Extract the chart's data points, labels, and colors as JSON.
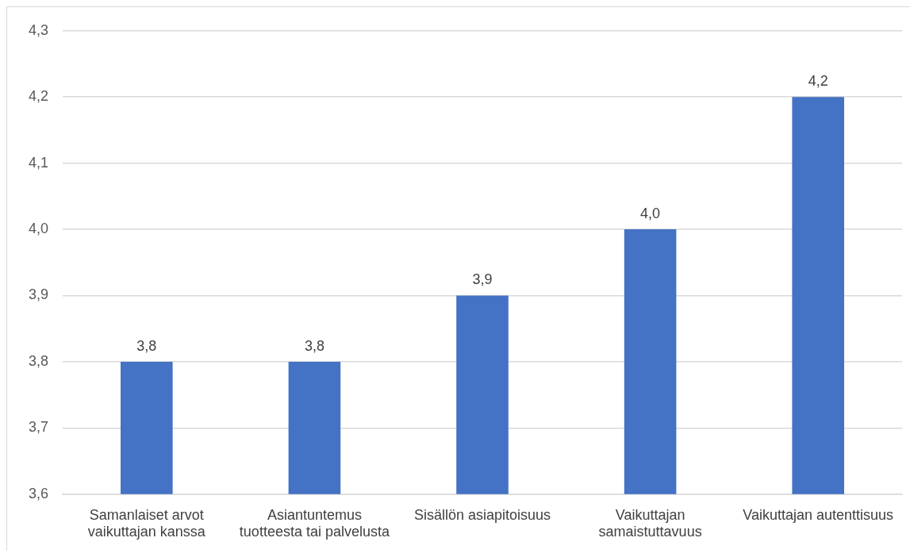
{
  "chart_data": {
    "type": "bar",
    "categories": [
      "Samanlaiset arvot vaikuttajan kanssa",
      "Asiantuntemus tuotteesta tai palvelusta",
      "Sisällön asiapitoisuus",
      "Vaikuttajan samaistuttavuus",
      "Vaikuttajan autenttisuus"
    ],
    "values": [
      3.8,
      3.8,
      3.9,
      4.0,
      4.2
    ],
    "value_labels": [
      "3,8",
      "3,8",
      "3,9",
      "4,0",
      "4,2"
    ],
    "color": "#4472c4",
    "ylim": [
      3.6,
      4.3
    ],
    "yticks": [
      {
        "value": 3.6,
        "label": "3,6"
      },
      {
        "value": 3.7,
        "label": "3,7"
      },
      {
        "value": 3.8,
        "label": "3,8"
      },
      {
        "value": 3.9,
        "label": "3,9"
      },
      {
        "value": 4.0,
        "label": "4,0"
      },
      {
        "value": 4.1,
        "label": "4,1"
      },
      {
        "value": 4.2,
        "label": "4,2"
      },
      {
        "value": 4.3,
        "label": "4,3"
      }
    ],
    "grid": "y",
    "legend": false
  }
}
